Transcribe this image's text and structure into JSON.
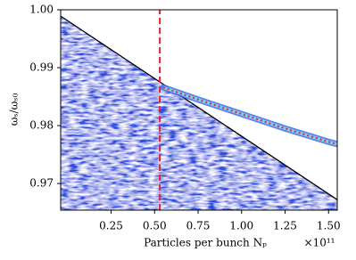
{
  "chart_data": {
    "type": "line",
    "y_label": "ωₛ/ωₛ₀",
    "x_label": "Particles per bunch Nₚ",
    "x_offset_label": "×10¹¹",
    "xlim": [
      -0.04,
      1.55
    ],
    "ylim": [
      0.9654,
      1.0
    ],
    "xticks": [
      0.25,
      {
        "value": 0.5,
        "label": "0.50"
      },
      0.75,
      {
        "value": 1,
        "label": "1.00"
      },
      1.25,
      {
        "value": 1.5,
        "label": "1.50"
      }
    ],
    "yticks": [
      0.97,
      0.98,
      0.99,
      {
        "value": 1,
        "label": "1.00"
      }
    ],
    "series": [
      {
        "color": "#000000",
        "fill": "#2a4fe0",
        "x": [
          -0.04,
          1.55
        ],
        "values": [
          0.9989,
          0.9672
        ]
      },
      {
        "color": "#e8202a",
        "dash": "dashed",
        "x": [
          0.53,
          0.53
        ],
        "values": [
          0.9654,
          1.0
        ]
      },
      {
        "color": "#e8202a",
        "outline": "#3a6cf0",
        "dash": "dotted",
        "x": [
          0.55,
          0.75,
          1.0,
          1.25,
          1.5,
          1.55
        ],
        "values": [
          0.9866,
          0.9845,
          0.982,
          0.9795,
          0.9772,
          0.9768
        ]
      }
    ]
  }
}
